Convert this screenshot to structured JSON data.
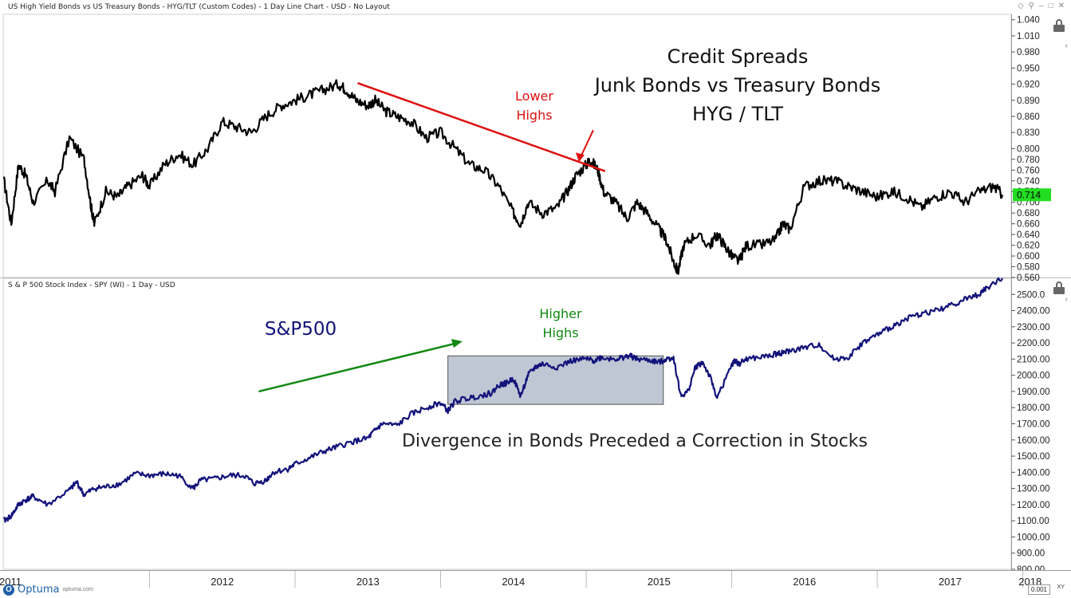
{
  "window": {
    "title": "US High Yield Bonds vs US Treasury Bonds - HYG/TLT (Custom Codes) - 1 Day Line Chart - USD - No Layout",
    "lower_panel_title": "S & P 500 Stock Index - SPY (WI) - 1 Day - USD",
    "logo_text": "Optuma",
    "logo_site": "optuma.com",
    "scale_value": "0.001",
    "scale_mode": "XY"
  },
  "colors": {
    "hyg_line": "#000000",
    "spx_line": "#12127a",
    "trend_red": "#dd1111",
    "trend_green": "#118811",
    "highlight_fill": "#8a99b0",
    "last_value_bg": "#22dd22",
    "grid": "#d8d8d8",
    "axis_text": "#222222"
  },
  "chart_data": [
    {
      "type": "line",
      "title": "Credit Spreads",
      "subtitle_lines": [
        "Junk Bonds vs Treasury Bonds",
        "HYG / TLT"
      ],
      "ylim": [
        0.56,
        1.05
      ],
      "y_ticks": [
        "1.040",
        "1.010",
        "0.980",
        "0.950",
        "0.920",
        "0.890",
        "0.860",
        "0.830",
        "0.800",
        "0.780",
        "0.760",
        "0.740",
        "0.720",
        "0.700",
        "0.680",
        "0.660",
        "0.640",
        "0.620",
        "0.600",
        "0.580",
        "0.560"
      ],
      "last_value": "0.714",
      "series": [
        {
          "x": [
            2011.0,
            2011.05,
            2011.1,
            2011.15,
            2011.2,
            2011.3,
            2011.35,
            2011.45,
            2011.55,
            2011.6,
            2011.62,
            2011.7,
            2011.78,
            2011.85,
            2011.95,
            2012.0,
            2012.1,
            2012.2,
            2012.3,
            2012.4,
            2012.5,
            2012.6,
            2012.7,
            2012.8,
            2012.9,
            2013.0,
            2013.1,
            2013.2,
            2013.3,
            2013.35,
            2013.42,
            2013.5,
            2013.55,
            2013.62,
            2013.7,
            2013.8,
            2013.9,
            2014.0,
            2014.1,
            2014.2,
            2014.3,
            2014.4,
            2014.5,
            2014.55,
            2014.6,
            2014.7,
            2014.8,
            2014.87,
            2014.93,
            2015.0,
            2015.03,
            2015.08,
            2015.12,
            2015.2,
            2015.28,
            2015.35,
            2015.42,
            2015.5,
            2015.55,
            2015.6,
            2015.63,
            2015.67,
            2015.75,
            2015.85,
            2015.9,
            2015.95,
            2016.0,
            2016.05,
            2016.1,
            2016.2,
            2016.3,
            2016.35,
            2016.4,
            2016.5,
            2016.6,
            2016.7,
            2016.8,
            2016.9,
            2017.0,
            2017.1,
            2017.2,
            2017.3,
            2017.4,
            2017.5,
            2017.6,
            2017.7,
            2017.8,
            2017.86
          ],
          "values": [
            0.74,
            0.66,
            0.77,
            0.75,
            0.7,
            0.74,
            0.72,
            0.82,
            0.78,
            0.69,
            0.66,
            0.72,
            0.71,
            0.73,
            0.75,
            0.73,
            0.77,
            0.79,
            0.77,
            0.8,
            0.85,
            0.84,
            0.83,
            0.86,
            0.88,
            0.89,
            0.9,
            0.91,
            0.92,
            0.91,
            0.89,
            0.88,
            0.89,
            0.87,
            0.86,
            0.85,
            0.82,
            0.83,
            0.8,
            0.77,
            0.76,
            0.73,
            0.68,
            0.66,
            0.7,
            0.68,
            0.69,
            0.72,
            0.75,
            0.77,
            0.78,
            0.76,
            0.72,
            0.7,
            0.67,
            0.7,
            0.68,
            0.65,
            0.63,
            0.59,
            0.57,
            0.62,
            0.64,
            0.62,
            0.64,
            0.62,
            0.6,
            0.59,
            0.62,
            0.62,
            0.63,
            0.66,
            0.65,
            0.73,
            0.74,
            0.74,
            0.73,
            0.72,
            0.71,
            0.72,
            0.71,
            0.69,
            0.71,
            0.72,
            0.7,
            0.72,
            0.73,
            0.714
          ]
        }
      ],
      "annotations": [
        {
          "text_lines": [
            "Lower",
            "Highs"
          ],
          "color": "#dd1111"
        }
      ],
      "trendline": {
        "x": [
          2013.43,
          2015.13
        ],
        "y": [
          0.922,
          0.758
        ]
      },
      "arrow_target": {
        "x": 2014.95,
        "y": 0.775
      }
    },
    {
      "type": "line",
      "title": "S&P500",
      "ylim": [
        800,
        2600
      ],
      "y_ticks": [
        "2500.0",
        "2400.00",
        "2300.00",
        "2200.00",
        "2100.00",
        "2000.00",
        "1900.00",
        "1800.00",
        "1700.00",
        "1600.00",
        "1500.00",
        "1400.00",
        "1300.00",
        "1200.00",
        "1100.00",
        "1000.00",
        "900.00",
        "800.00"
      ],
      "series": [
        {
          "x": [
            2011.0,
            2011.05,
            2011.1,
            2011.15,
            2011.2,
            2011.3,
            2011.45,
            2011.5,
            2011.55,
            2011.62,
            2011.7,
            2011.8,
            2011.9,
            2012.0,
            2012.1,
            2012.2,
            2012.3,
            2012.35,
            2012.45,
            2012.55,
            2012.65,
            2012.72,
            2012.8,
            2012.85,
            2012.95,
            2013.0,
            2013.1,
            2013.2,
            2013.3,
            2013.4,
            2013.5,
            2013.55,
            2013.6,
            2013.7,
            2013.8,
            2013.9,
            2014.0,
            2014.05,
            2014.1,
            2014.2,
            2014.3,
            2014.35,
            2014.4,
            2014.45,
            2014.5,
            2014.55,
            2014.6,
            2014.65,
            2014.7,
            2014.8,
            2014.9,
            2015.0,
            2015.05,
            2015.1,
            2015.2,
            2015.25,
            2015.3,
            2015.35,
            2015.45,
            2015.5,
            2015.55,
            2015.6,
            2015.65,
            2015.7,
            2015.75,
            2015.8,
            2015.85,
            2015.9,
            2016.0,
            2016.02,
            2016.05,
            2016.1,
            2016.2,
            2016.3,
            2016.35,
            2016.4,
            2016.5,
            2016.6,
            2016.7,
            2016.8,
            2016.9,
            2017.0,
            2017.1,
            2017.2,
            2017.3,
            2017.4,
            2017.5,
            2017.6,
            2017.7,
            2017.75,
            2017.86
          ],
          "values": [
            1100,
            1130,
            1200,
            1230,
            1250,
            1200,
            1290,
            1340,
            1260,
            1300,
            1310,
            1330,
            1390,
            1380,
            1390,
            1380,
            1300,
            1350,
            1360,
            1380,
            1380,
            1330,
            1350,
            1400,
            1420,
            1450,
            1490,
            1530,
            1560,
            1590,
            1610,
            1660,
            1700,
            1690,
            1760,
            1800,
            1830,
            1780,
            1840,
            1860,
            1880,
            1890,
            1940,
            1950,
            1980,
            1870,
            2000,
            2050,
            2070,
            2050,
            2090,
            2100,
            2090,
            2110,
            2100,
            2110,
            2120,
            2100,
            2090,
            2080,
            2100,
            2110,
            1870,
            1900,
            2050,
            2080,
            1990,
            1860,
            2060,
            2090,
            2070,
            2100,
            2110,
            2130,
            2140,
            2150,
            2170,
            2190,
            2100,
            2110,
            2200,
            2250,
            2300,
            2350,
            2380,
            2400,
            2430,
            2470,
            2500,
            2540,
            2600
          ]
        }
      ],
      "annotations": [
        {
          "text_lines": [
            "Higher",
            "Highs"
          ],
          "color": "#118811"
        },
        {
          "text_lines": [
            "Divergence in Bonds Preceded a Correction in Stocks"
          ],
          "color": "#222222"
        }
      ],
      "trendline": {
        "x": [
          2012.75,
          2014.15
        ],
        "y": [
          1900,
          2210
        ]
      },
      "highlight_range": {
        "x": [
          2014.05,
          2015.53
        ],
        "y": [
          1820,
          2120
        ]
      }
    }
  ],
  "x_axis": {
    "labels": [
      "2011",
      "2012",
      "2013",
      "2014",
      "2015",
      "2016",
      "2017",
      "2018"
    ]
  }
}
